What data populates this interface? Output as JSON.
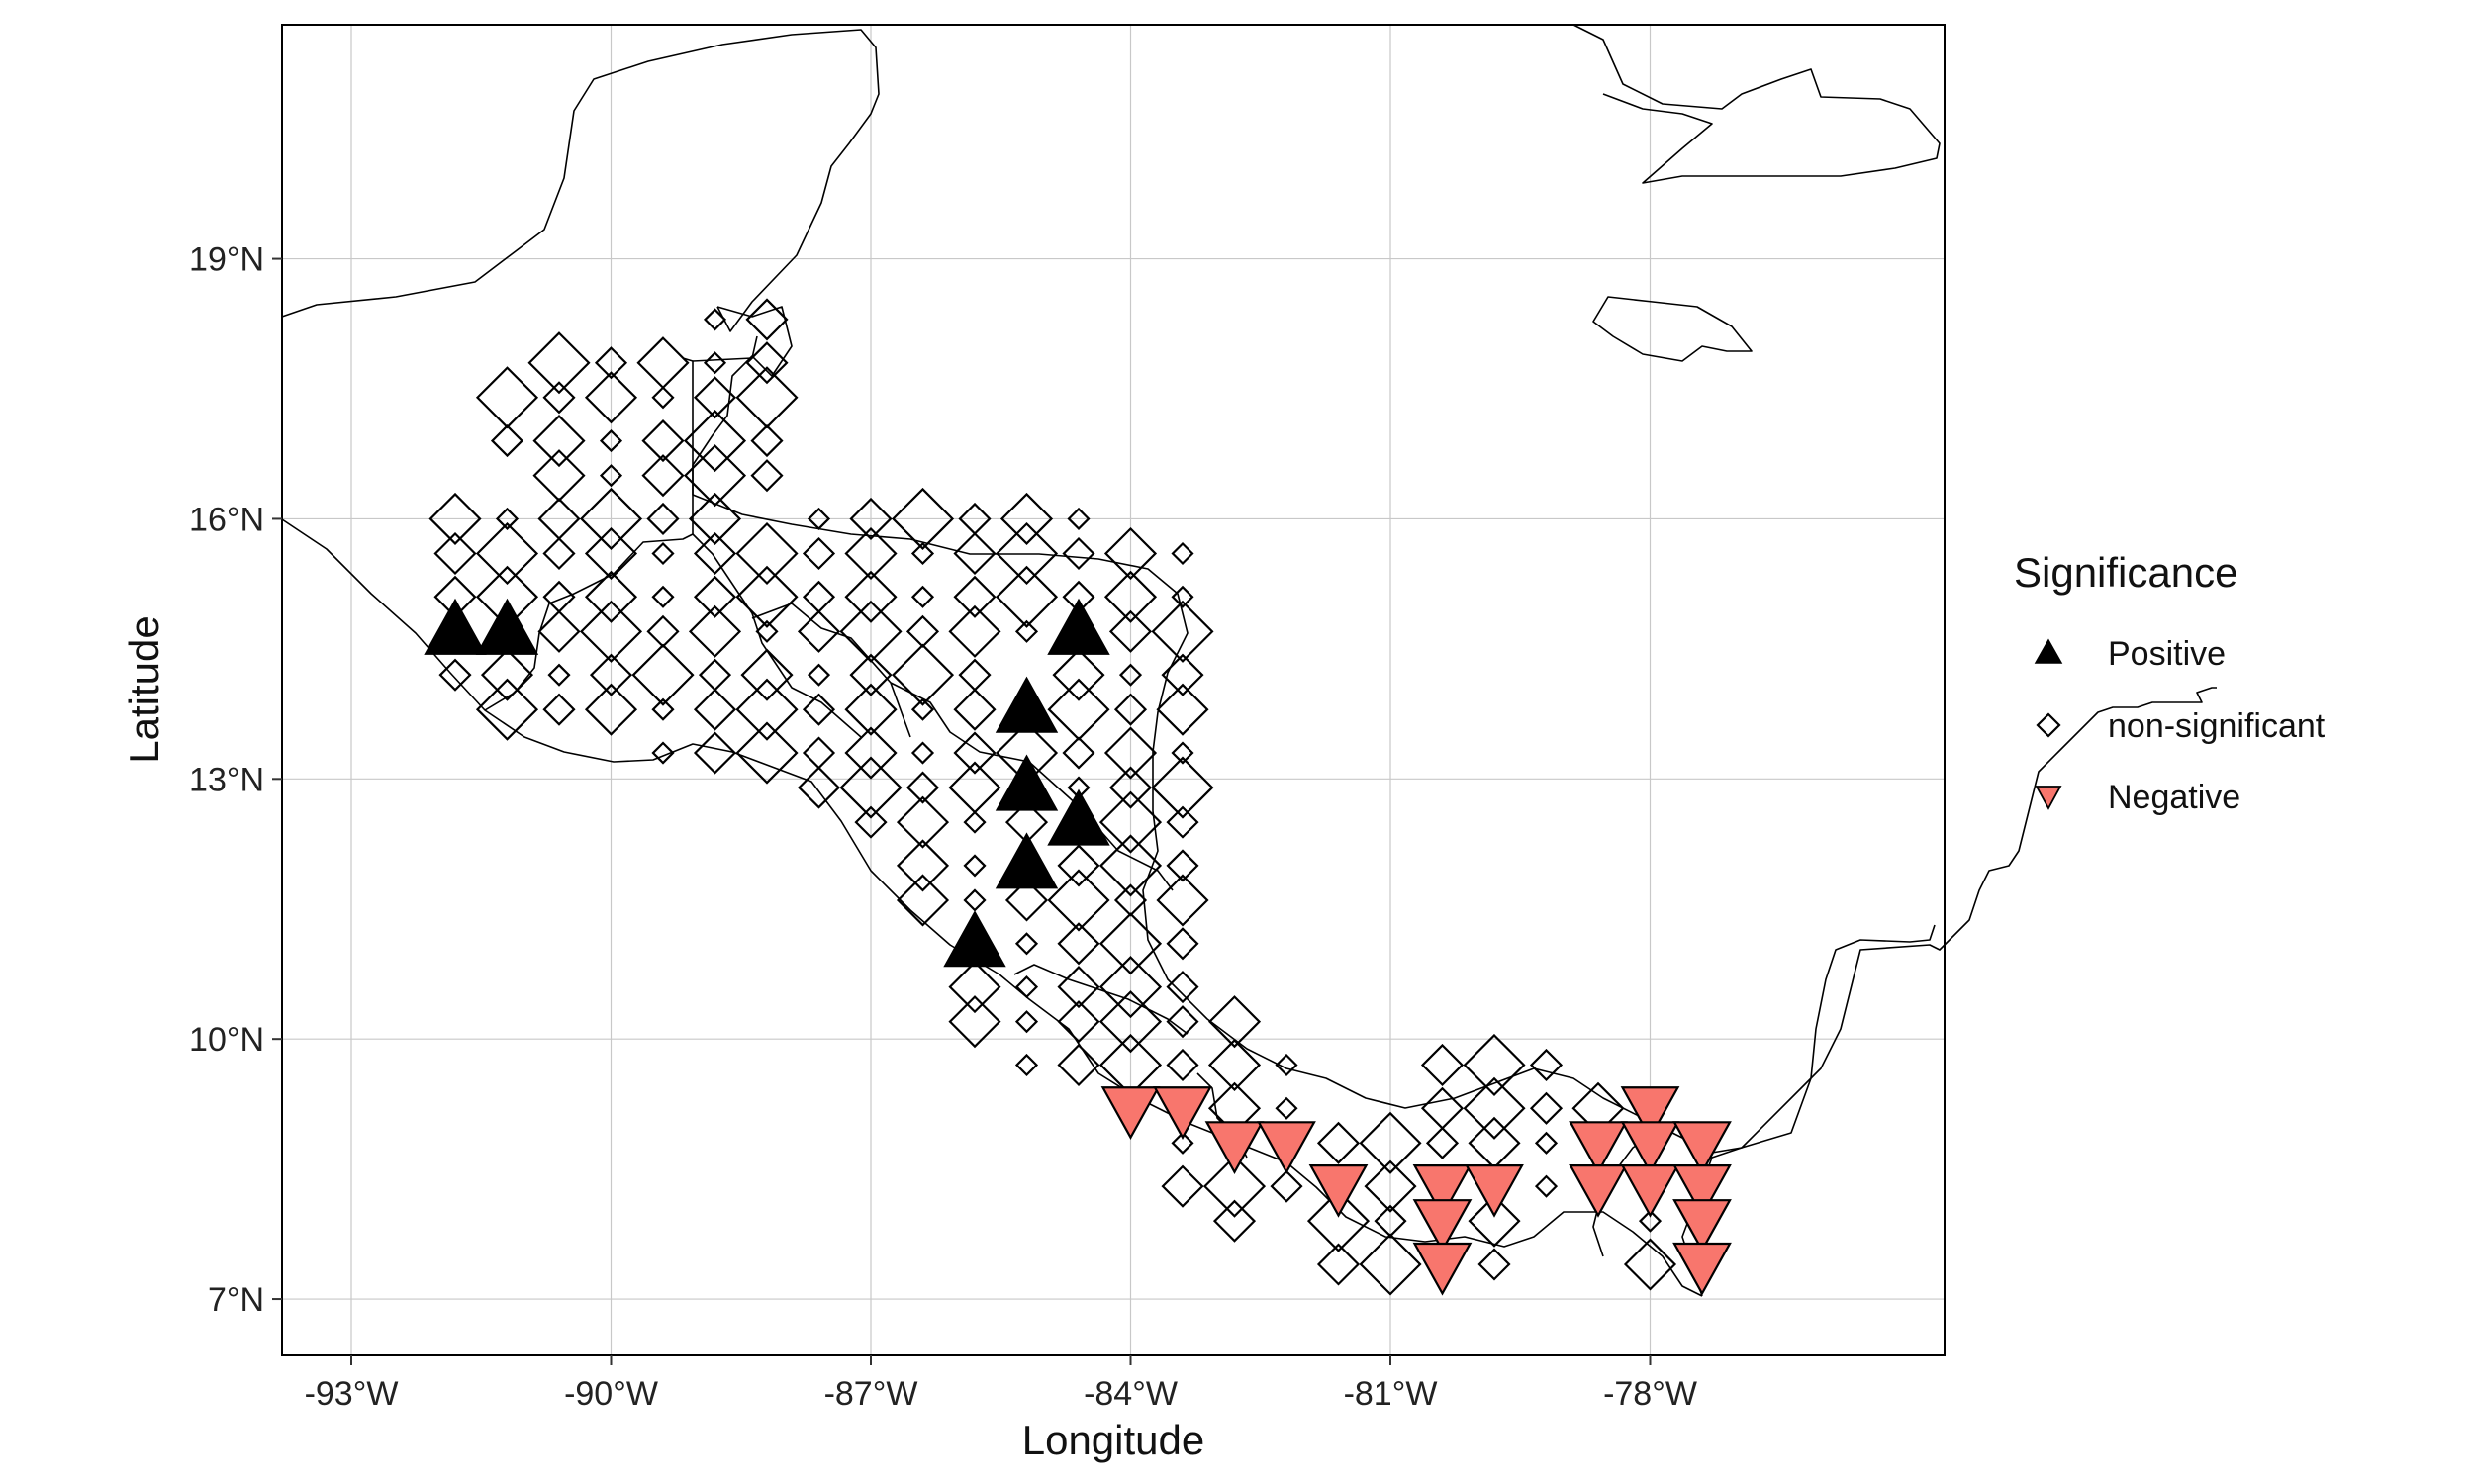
{
  "chart_data": {
    "type": "map-scatter",
    "xlabel": "Longitude",
    "ylabel": "Latitude",
    "xlim": [
      -93.8,
      -74.6
    ],
    "ylim": [
      6.35,
      21.7
    ],
    "x_ticks": [
      {
        "value": -93,
        "label": "-93°W"
      },
      {
        "value": -90,
        "label": "-90°W"
      },
      {
        "value": -87,
        "label": "-87°W"
      },
      {
        "value": -84,
        "label": "-84°W"
      },
      {
        "value": -81,
        "label": "-81°W"
      },
      {
        "value": -78,
        "label": "-78°W"
      }
    ],
    "y_ticks": [
      {
        "value": 7,
        "label": "7°N"
      },
      {
        "value": 10,
        "label": "10°N"
      },
      {
        "value": 13,
        "label": "13°N"
      },
      {
        "value": 16,
        "label": "16°N"
      },
      {
        "value": 19,
        "label": "19°N"
      }
    ],
    "grid": true,
    "legend": {
      "title": "Significance",
      "placement": "right",
      "entries": [
        {
          "label": "Positive",
          "shape": "triangle-up",
          "color": "#000000"
        },
        {
          "label": "non-significant",
          "shape": "diamond-open",
          "color": "#000000"
        },
        {
          "label": "Negative",
          "shape": "triangle-down",
          "color": "#F8766D"
        }
      ]
    },
    "colors": {
      "positive": "#000000",
      "negative": "#F8766D",
      "nonsig_stroke": "#000000",
      "coast": "#000000"
    },
    "series": [
      {
        "name": "Positive",
        "points": [
          [
            -91.8,
            14.7
          ],
          [
            -91.2,
            14.7
          ],
          [
            -84.6,
            14.7
          ],
          [
            -85.2,
            13.8
          ],
          [
            -85.2,
            12.9
          ],
          [
            -84.6,
            12.5
          ],
          [
            -85.2,
            12.0
          ],
          [
            -85.8,
            11.1
          ]
        ]
      },
      {
        "name": "Negative",
        "points": [
          [
            -84.0,
            9.2
          ],
          [
            -83.4,
            9.2
          ],
          [
            -82.8,
            8.8
          ],
          [
            -82.2,
            8.8
          ],
          [
            -81.6,
            8.3
          ],
          [
            -80.4,
            8.3
          ],
          [
            -79.8,
            8.3
          ],
          [
            -80.4,
            7.9
          ],
          [
            -80.4,
            7.4
          ],
          [
            -78.6,
            8.8
          ],
          [
            -78.0,
            9.2
          ],
          [
            -78.0,
            8.8
          ],
          [
            -77.4,
            8.8
          ],
          [
            -78.6,
            8.3
          ],
          [
            -78.0,
            8.3
          ],
          [
            -77.4,
            8.3
          ],
          [
            -77.4,
            7.9
          ],
          [
            -77.4,
            7.4
          ]
        ]
      },
      {
        "name": "non-significant",
        "points": [
          [
            -88.8,
            18.3
          ],
          [
            -88.2,
            18.3
          ],
          [
            -90.6,
            17.8
          ],
          [
            -90.0,
            17.8
          ],
          [
            -89.4,
            17.8
          ],
          [
            -88.8,
            17.8
          ],
          [
            -88.2,
            17.8
          ],
          [
            -91.2,
            17.4
          ],
          [
            -90.6,
            17.4
          ],
          [
            -90.0,
            17.4
          ],
          [
            -89.4,
            17.4
          ],
          [
            -88.8,
            17.4
          ],
          [
            -88.2,
            17.4
          ],
          [
            -91.2,
            16.9
          ],
          [
            -90.6,
            16.9
          ],
          [
            -90.0,
            16.9
          ],
          [
            -89.4,
            16.9
          ],
          [
            -88.8,
            16.9
          ],
          [
            -88.2,
            16.9
          ],
          [
            -90.6,
            16.5
          ],
          [
            -90.0,
            16.5
          ],
          [
            -89.4,
            16.5
          ],
          [
            -88.8,
            16.5
          ],
          [
            -88.2,
            16.5
          ],
          [
            -91.8,
            16.0
          ],
          [
            -91.2,
            16.0
          ],
          [
            -90.6,
            16.0
          ],
          [
            -90.0,
            16.0
          ],
          [
            -89.4,
            16.0
          ],
          [
            -88.8,
            16.0
          ],
          [
            -87.6,
            16.0
          ],
          [
            -87.0,
            16.0
          ],
          [
            -86.4,
            16.0
          ],
          [
            -85.8,
            16.0
          ],
          [
            -85.2,
            16.0
          ],
          [
            -84.6,
            16.0
          ],
          [
            -91.8,
            15.6
          ],
          [
            -91.2,
            15.6
          ],
          [
            -90.6,
            15.6
          ],
          [
            -90.0,
            15.6
          ],
          [
            -89.4,
            15.6
          ],
          [
            -88.8,
            15.6
          ],
          [
            -88.2,
            15.6
          ],
          [
            -87.6,
            15.6
          ],
          [
            -87.0,
            15.6
          ],
          [
            -86.4,
            15.6
          ],
          [
            -85.8,
            15.6
          ],
          [
            -85.2,
            15.6
          ],
          [
            -84.6,
            15.6
          ],
          [
            -84.0,
            15.6
          ],
          [
            -83.4,
            15.6
          ],
          [
            -91.8,
            15.1
          ],
          [
            -91.2,
            15.1
          ],
          [
            -90.6,
            15.1
          ],
          [
            -90.0,
            15.1
          ],
          [
            -89.4,
            15.1
          ],
          [
            -88.8,
            15.1
          ],
          [
            -88.2,
            15.1
          ],
          [
            -87.6,
            15.1
          ],
          [
            -87.0,
            15.1
          ],
          [
            -86.4,
            15.1
          ],
          [
            -85.8,
            15.1
          ],
          [
            -85.2,
            15.1
          ],
          [
            -84.6,
            15.1
          ],
          [
            -84.0,
            15.1
          ],
          [
            -83.4,
            15.1
          ],
          [
            -90.6,
            14.7
          ],
          [
            -90.0,
            14.7
          ],
          [
            -89.4,
            14.7
          ],
          [
            -88.8,
            14.7
          ],
          [
            -88.2,
            14.7
          ],
          [
            -87.6,
            14.7
          ],
          [
            -87.0,
            14.7
          ],
          [
            -86.4,
            14.7
          ],
          [
            -85.8,
            14.7
          ],
          [
            -85.2,
            14.7
          ],
          [
            -84.0,
            14.7
          ],
          [
            -83.4,
            14.7
          ],
          [
            -91.8,
            14.2
          ],
          [
            -91.2,
            14.2
          ],
          [
            -90.6,
            14.2
          ],
          [
            -90.0,
            14.2
          ],
          [
            -89.4,
            14.2
          ],
          [
            -88.8,
            14.2
          ],
          [
            -88.2,
            14.2
          ],
          [
            -87.6,
            14.2
          ],
          [
            -87.0,
            14.2
          ],
          [
            -86.4,
            14.2
          ],
          [
            -85.8,
            14.2
          ],
          [
            -84.6,
            14.2
          ],
          [
            -84.0,
            14.2
          ],
          [
            -83.4,
            14.2
          ],
          [
            -91.2,
            13.8
          ],
          [
            -90.6,
            13.8
          ],
          [
            -90.0,
            13.8
          ],
          [
            -89.4,
            13.8
          ],
          [
            -88.8,
            13.8
          ],
          [
            -88.2,
            13.8
          ],
          [
            -87.6,
            13.8
          ],
          [
            -87.0,
            13.8
          ],
          [
            -86.4,
            13.8
          ],
          [
            -85.8,
            13.8
          ],
          [
            -84.6,
            13.8
          ],
          [
            -84.0,
            13.8
          ],
          [
            -83.4,
            13.8
          ],
          [
            -89.4,
            13.3
          ],
          [
            -88.8,
            13.3
          ],
          [
            -88.2,
            13.3
          ],
          [
            -87.6,
            13.3
          ],
          [
            -87.0,
            13.3
          ],
          [
            -86.4,
            13.3
          ],
          [
            -85.8,
            13.3
          ],
          [
            -85.2,
            13.3
          ],
          [
            -84.6,
            13.3
          ],
          [
            -84.0,
            13.3
          ],
          [
            -83.4,
            13.3
          ],
          [
            -87.6,
            12.9
          ],
          [
            -87.0,
            12.9
          ],
          [
            -86.4,
            12.9
          ],
          [
            -85.8,
            12.9
          ],
          [
            -84.6,
            12.9
          ],
          [
            -84.0,
            12.9
          ],
          [
            -83.4,
            12.9
          ],
          [
            -87.0,
            12.5
          ],
          [
            -86.4,
            12.5
          ],
          [
            -85.8,
            12.5
          ],
          [
            -85.2,
            12.5
          ],
          [
            -84.0,
            12.5
          ],
          [
            -83.4,
            12.5
          ],
          [
            -86.4,
            12.0
          ],
          [
            -85.8,
            12.0
          ],
          [
            -84.6,
            12.0
          ],
          [
            -84.0,
            12.0
          ],
          [
            -83.4,
            12.0
          ],
          [
            -86.4,
            11.6
          ],
          [
            -85.8,
            11.6
          ],
          [
            -85.2,
            11.6
          ],
          [
            -84.6,
            11.6
          ],
          [
            -84.0,
            11.6
          ],
          [
            -83.4,
            11.6
          ],
          [
            -85.2,
            11.1
          ],
          [
            -84.6,
            11.1
          ],
          [
            -84.0,
            11.1
          ],
          [
            -83.4,
            11.1
          ],
          [
            -85.8,
            10.6
          ],
          [
            -85.2,
            10.6
          ],
          [
            -84.6,
            10.6
          ],
          [
            -84.0,
            10.6
          ],
          [
            -83.4,
            10.6
          ],
          [
            -85.8,
            10.2
          ],
          [
            -85.2,
            10.2
          ],
          [
            -84.6,
            10.2
          ],
          [
            -84.0,
            10.2
          ],
          [
            -83.4,
            10.2
          ],
          [
            -82.8,
            10.2
          ],
          [
            -85.2,
            9.7
          ],
          [
            -84.6,
            9.7
          ],
          [
            -84.0,
            9.7
          ],
          [
            -83.4,
            9.7
          ],
          [
            -82.8,
            9.7
          ],
          [
            -82.2,
            9.7
          ],
          [
            -80.4,
            9.7
          ],
          [
            -79.8,
            9.7
          ],
          [
            -79.2,
            9.7
          ],
          [
            -82.8,
            9.2
          ],
          [
            -82.2,
            9.2
          ],
          [
            -80.4,
            9.2
          ],
          [
            -79.8,
            9.2
          ],
          [
            -79.2,
            9.2
          ],
          [
            -78.6,
            9.2
          ],
          [
            -83.4,
            8.8
          ],
          [
            -81.6,
            8.8
          ],
          [
            -81.0,
            8.8
          ],
          [
            -80.4,
            8.8
          ],
          [
            -79.8,
            8.8
          ],
          [
            -79.2,
            8.8
          ],
          [
            -83.4,
            8.3
          ],
          [
            -82.8,
            8.3
          ],
          [
            -82.2,
            8.3
          ],
          [
            -81.0,
            8.3
          ],
          [
            -79.2,
            8.3
          ],
          [
            -82.8,
            7.9
          ],
          [
            -81.6,
            7.9
          ],
          [
            -81.0,
            7.9
          ],
          [
            -79.8,
            7.9
          ],
          [
            -78.0,
            7.9
          ],
          [
            -81.6,
            7.4
          ],
          [
            -81.0,
            7.4
          ],
          [
            -79.8,
            7.4
          ],
          [
            -78.0,
            7.4
          ]
        ]
      }
    ]
  }
}
